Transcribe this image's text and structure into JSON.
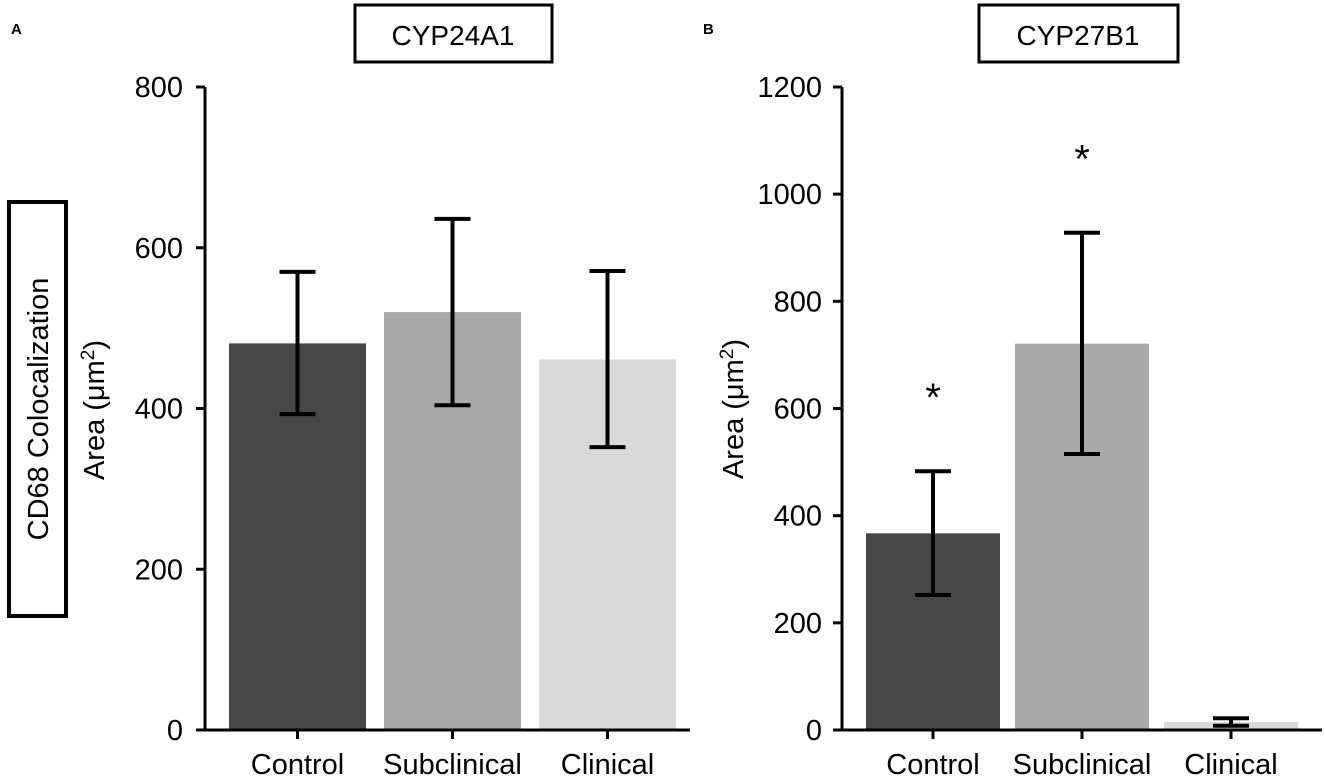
{
  "row_label": "CD68 Colocalization",
  "colors": {
    "Control": "#474747",
    "Subclinical": "#aaaaaa",
    "Clinical": "#d9d9d9",
    "axis": "#000000"
  },
  "chart_data": [
    {
      "type": "bar",
      "panel_letter": "A",
      "title": "CYP24A1",
      "ylabel_prefix": "Area (μm",
      "ylabel_sup": "2",
      "ylabel_suffix": ")",
      "xlabel": "",
      "categories": [
        "Control",
        "Subclinical",
        "Clinical"
      ],
      "values": [
        481,
        520,
        461
      ],
      "error_low": [
        393,
        404,
        352
      ],
      "error_high": [
        570,
        636,
        571
      ],
      "significance": [
        "",
        "",
        ""
      ],
      "ylim": [
        0,
        800
      ],
      "yticks": [
        0,
        200,
        400,
        600,
        800
      ],
      "ytick_labels": [
        "0",
        "200",
        "400",
        "600",
        "800"
      ]
    },
    {
      "type": "bar",
      "panel_letter": "B",
      "title": "CYP27B1",
      "ylabel_prefix": "Area (μm",
      "ylabel_sup": "2",
      "ylabel_suffix": ")",
      "xlabel": "",
      "categories": [
        "Control",
        "Subclinical",
        "Clinical"
      ],
      "values": [
        367,
        721,
        15
      ],
      "error_low": [
        252,
        515,
        8
      ],
      "error_high": [
        483,
        928,
        22
      ],
      "significance": [
        "*",
        "*",
        ""
      ],
      "ylim": [
        0,
        1200
      ],
      "yticks": [
        0,
        200,
        400,
        600,
        800,
        1000,
        1200
      ],
      "ytick_labels": [
        "0",
        "200",
        "400",
        "600",
        "800",
        "1000",
        "1200"
      ]
    }
  ]
}
